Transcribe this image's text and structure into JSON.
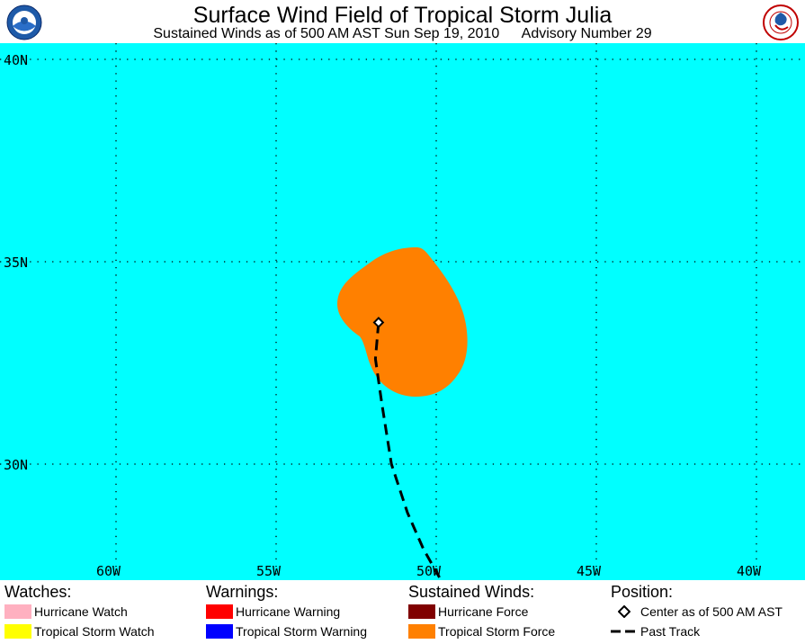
{
  "header": {
    "title": "Surface Wind Field of Tropical Storm Julia",
    "subtitle_left": "Sustained Winds as of 500 AM AST Sun Sep 19, 2010",
    "subtitle_right": "Advisory Number 29",
    "logo_left": "noaa-logo",
    "logo_right": "national-weather-service-logo"
  },
  "map": {
    "background_color": "#00ffff",
    "lat_labels": [
      "40N",
      "35N",
      "30N"
    ],
    "lon_labels": [
      "60W",
      "55W",
      "50W",
      "45W",
      "40W"
    ],
    "grid": "dotted",
    "storm_center": {
      "lat": 33.5,
      "lon": 51.8
    },
    "past_track": [
      {
        "lat": 33.5,
        "lon": 51.8
      },
      {
        "lat": 32.6,
        "lon": 51.9
      },
      {
        "lat": 31.5,
        "lon": 51.7
      },
      {
        "lat": 30.0,
        "lon": 51.4
      },
      {
        "lat": 28.8,
        "lon": 50.9
      },
      {
        "lat": 27.9,
        "lon": 50.4
      },
      {
        "lat": 27.2,
        "lon": 49.9
      }
    ],
    "tropical_storm_force_color": "#ff8000"
  },
  "legend": {
    "watches": {
      "title": "Watches:",
      "items": [
        {
          "label": "Hurricane Watch",
          "color": "#ffb0c0"
        },
        {
          "label": "Tropical Storm Watch",
          "color": "#ffff00"
        }
      ]
    },
    "warnings": {
      "title": "Warnings:",
      "items": [
        {
          "label": "Hurricane Warning",
          "color": "#ff0000"
        },
        {
          "label": "Tropical Storm Warning",
          "color": "#0000ff"
        }
      ]
    },
    "winds": {
      "title": "Sustained Winds:",
      "items": [
        {
          "label": "Hurricane Force",
          "color": "#800000"
        },
        {
          "label": "Tropical Storm Force",
          "color": "#ff8000"
        }
      ]
    },
    "position": {
      "title": "Position:",
      "center_label": "Center as of 500 AM AST",
      "track_label": "Past Track"
    }
  }
}
